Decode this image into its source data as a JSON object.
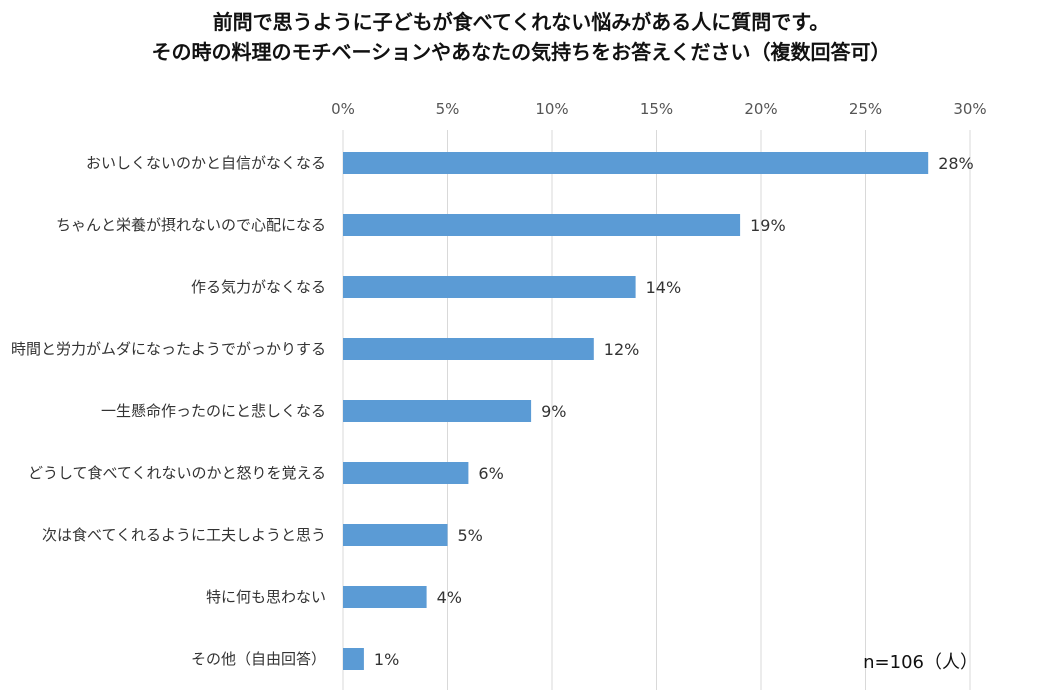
{
  "chart_data": {
    "type": "bar",
    "orientation": "horizontal",
    "title": [
      "前問で思うように子どもが食べてくれない悩みがある人に質問です。",
      "その時の料理のモチベーションやあなたの気持ちをお答えください（複数回答可）"
    ],
    "categories": [
      "おいしくないのかと自信がなくなる",
      "ちゃんと栄養が摂れないので心配になる",
      "作る気力がなくなる",
      "時間と労力がムダになったようでがっかりする",
      "一生懸命作ったのにと悲しくなる",
      "どうして食べてくれないのかと怒りを覚える",
      "次は食べてくれるように工夫しようと思う",
      "特に何も思わない",
      "その他（自由回答）"
    ],
    "values": [
      28,
      19,
      14,
      12,
      9,
      6,
      5,
      4,
      1
    ],
    "data_labels": [
      "28%",
      "19%",
      "14%",
      "12%",
      "9%",
      "6%",
      "5%",
      "4%",
      "1%"
    ],
    "xlim": [
      0,
      30
    ],
    "ticks": [
      0,
      5,
      10,
      15,
      20,
      25,
      30
    ],
    "tick_labels": [
      "0%",
      "5%",
      "10%",
      "15%",
      "20%",
      "25%",
      "30%"
    ],
    "axis_position": "top",
    "grid": true,
    "bar_color": "#5b9bd5",
    "grid_color": "#d9d9d9",
    "note": "n=106（人）"
  }
}
